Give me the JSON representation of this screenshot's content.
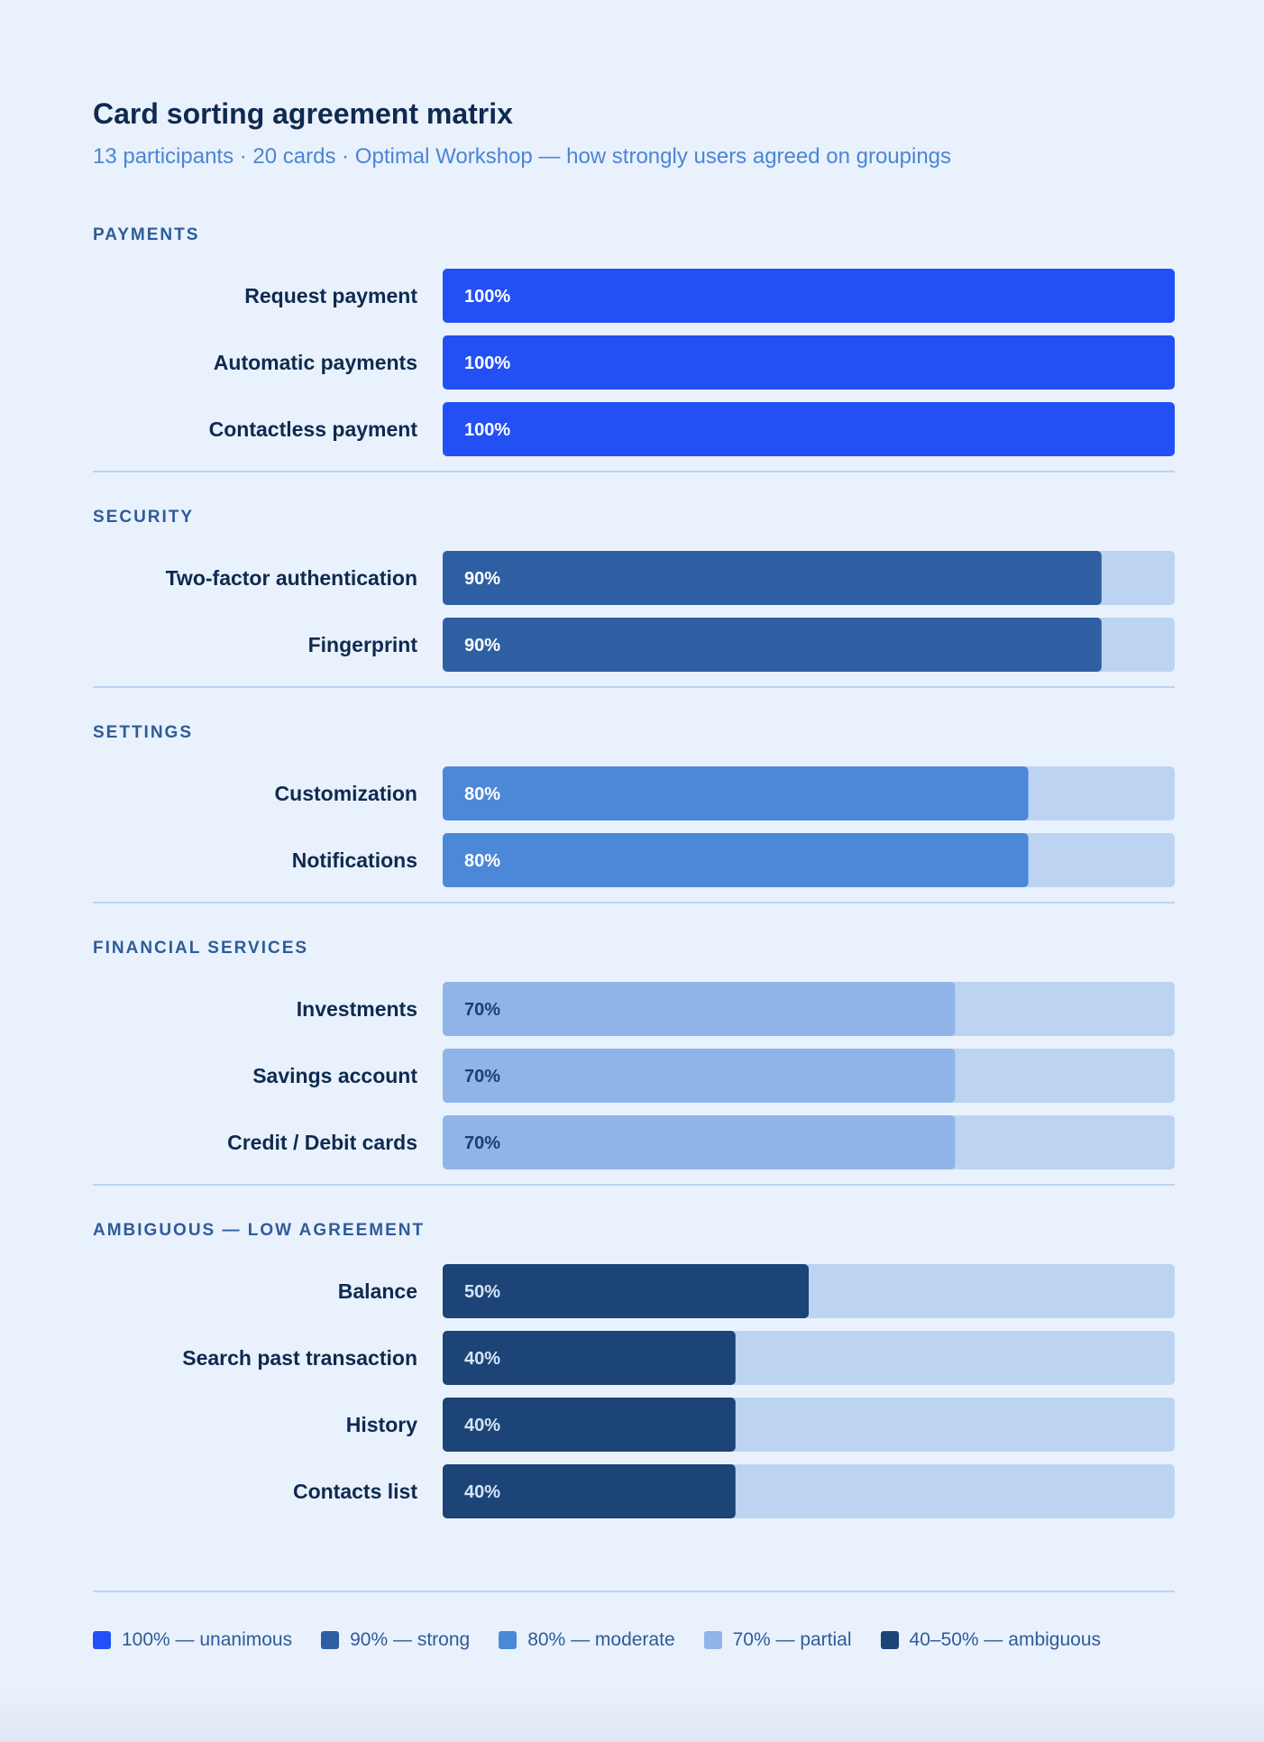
{
  "header": {
    "title": "Card sorting agreement matrix",
    "subtitle": "13 participants · 20 cards · Optimal Workshop — how strongly users agreed on groupings"
  },
  "chart_data": {
    "type": "bar",
    "orientation": "horizontal",
    "unit": "%",
    "xlim": [
      0,
      100
    ],
    "grid": false,
    "groups": [
      {
        "name": "PAYMENTS",
        "items": [
          {
            "label": "Request payment",
            "value": 100,
            "value_label": "100%"
          },
          {
            "label": "Automatic payments",
            "value": 100,
            "value_label": "100%"
          },
          {
            "label": "Contactless payment",
            "value": 100,
            "value_label": "100%"
          }
        ]
      },
      {
        "name": "SECURITY",
        "items": [
          {
            "label": "Two-factor authentication",
            "value": 90,
            "value_label": "90%"
          },
          {
            "label": "Fingerprint",
            "value": 90,
            "value_label": "90%"
          }
        ]
      },
      {
        "name": "SETTINGS",
        "items": [
          {
            "label": "Customization",
            "value": 80,
            "value_label": "80%"
          },
          {
            "label": "Notifications",
            "value": 80,
            "value_label": "80%"
          }
        ]
      },
      {
        "name": "FINANCIAL SERVICES",
        "items": [
          {
            "label": "Investments",
            "value": 70,
            "value_label": "70%"
          },
          {
            "label": "Savings account",
            "value": 70,
            "value_label": "70%"
          },
          {
            "label": "Credit / Debit cards",
            "value": 70,
            "value_label": "70%"
          }
        ]
      },
      {
        "name": "AMBIGUOUS — LOW AGREEMENT",
        "items": [
          {
            "label": "Balance",
            "value": 50,
            "value_label": "50%"
          },
          {
            "label": "Search past transaction",
            "value": 40,
            "value_label": "40%"
          },
          {
            "label": "History",
            "value": 40,
            "value_label": "40%"
          },
          {
            "label": "Contacts list",
            "value": 40,
            "value_label": "40%"
          }
        ]
      }
    ],
    "legend": {
      "placement": "bottom",
      "entries": [
        {
          "label": "100% — unanimous",
          "color": "#2350f5"
        },
        {
          "label": "90% — strong",
          "color": "#2e5fa3"
        },
        {
          "label": "80% — moderate",
          "color": "#4c88d8"
        },
        {
          "label": "70% — partial",
          "color": "#8fb4e8"
        },
        {
          "label": "40–50% — ambiguous",
          "color": "#1c4476"
        }
      ]
    }
  },
  "colors": {
    "background": "#e9f1fd",
    "track": "#bcd4f1",
    "divider": "#bcd4f1",
    "group_heading": "#2d5c99",
    "row_label": "#0f2a4f",
    "bar_100": "#2350f5",
    "bar_90": "#2e5fa3",
    "bar_80": "#4c88d8",
    "bar_70": "#8fb4e8",
    "bar_low": "#1c4476",
    "value_text_light": "#ffffff",
    "value_text_dark": "#1c3f6e",
    "value_text_low": "#d6e4f7"
  }
}
